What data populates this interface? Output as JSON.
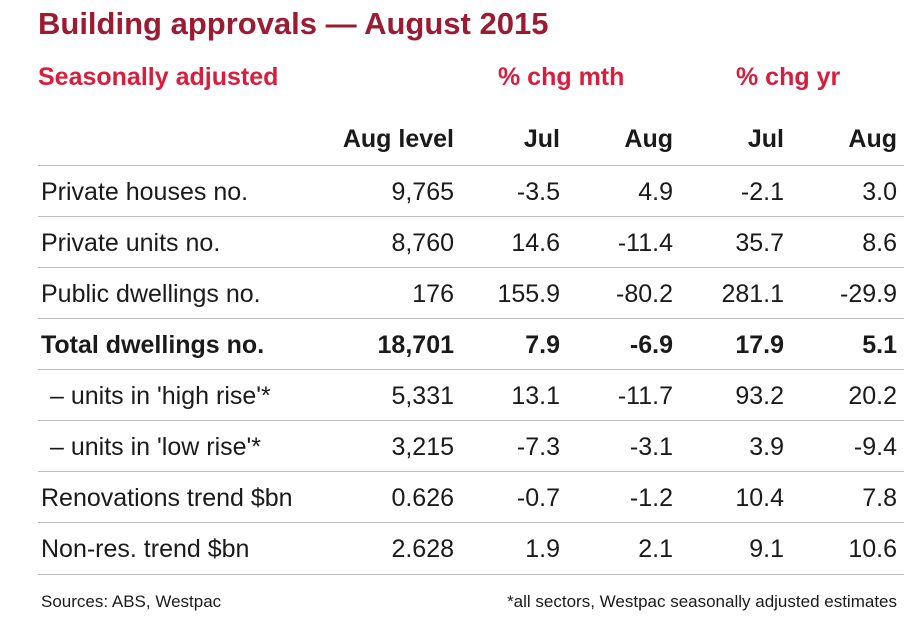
{
  "title": "Building approvals — August 2015",
  "subtitle": "Seasonally adjusted",
  "groups": {
    "mth": "% chg mth",
    "yr": "% chg yr"
  },
  "columns": [
    "Aug level",
    "Jul",
    "Aug",
    "Jul",
    "Aug"
  ],
  "rows": [
    {
      "label": "Private houses no.",
      "values": [
        "9,765",
        "-3.5",
        "4.9",
        "-2.1",
        "3.0"
      ]
    },
    {
      "label": "Private units no.",
      "values": [
        "8,760",
        "14.6",
        "-11.4",
        "35.7",
        "8.6"
      ]
    },
    {
      "label": "Public dwellings no.",
      "values": [
        "176",
        "155.9",
        "-80.2",
        "281.1",
        "-29.9"
      ]
    },
    {
      "label": "Total dwellings no.",
      "values": [
        "18,701",
        "7.9",
        "-6.9",
        "17.9",
        "5.1"
      ]
    },
    {
      "label": "– units in 'high rise'*",
      "values": [
        "5,331",
        "13.1",
        "-11.7",
        "93.2",
        "20.2"
      ]
    },
    {
      "label": "– units in 'low rise'*",
      "values": [
        "3,215",
        "-7.3",
        "-3.1",
        "3.9",
        "-9.4"
      ]
    },
    {
      "label": "Renovations trend $bn",
      "values": [
        "0.626",
        "-0.7",
        "-1.2",
        "10.4",
        "7.8"
      ]
    },
    {
      "label": "Non-res. trend $bn",
      "values": [
        "2.628",
        "1.9",
        "2.1",
        "9.1",
        "10.6"
      ]
    }
  ],
  "footer": {
    "sources": "Sources: ABS, Westpac",
    "note": "*all sectors, Westpac seasonally adjusted estimates"
  },
  "colors": {
    "title": "#9a1b32",
    "accent": "#d81e3c",
    "rule": "#bdbdbd"
  }
}
